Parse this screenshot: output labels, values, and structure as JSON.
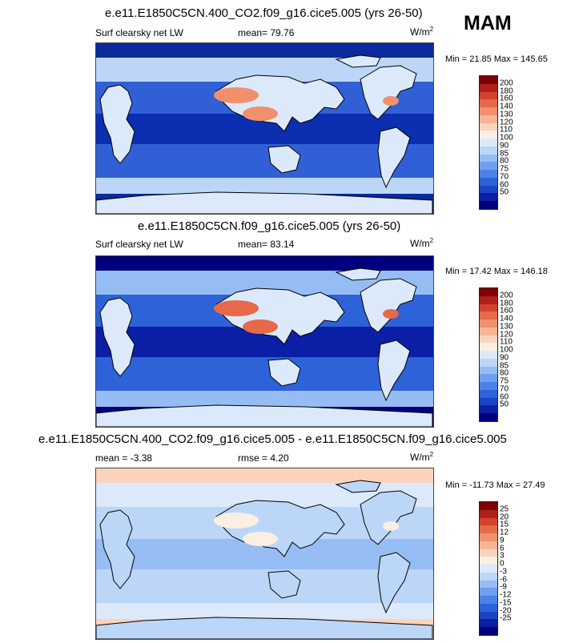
{
  "season": "MAM",
  "colors": {
    "abs": [
      "#00007f",
      "#0b1fa6",
      "#1a44c4",
      "#2e62d8",
      "#4a82e8",
      "#6f9fee",
      "#96bdf3",
      "#bcd6f7",
      "#dce9fb",
      "#fbeee2",
      "#fbd3bd",
      "#f8b595",
      "#f1906c",
      "#e6694a",
      "#d2422c",
      "#b0201a",
      "#7f0000"
    ],
    "diff": [
      "#00007f",
      "#0b1fa6",
      "#1a44c4",
      "#2e62d8",
      "#4a82e8",
      "#6f9fee",
      "#96bdf3",
      "#bcd6f7",
      "#dce9fb",
      "#fbeee2",
      "#fbd3bd",
      "#f8b595",
      "#f1906c",
      "#e6694a",
      "#d2422c",
      "#b0201a",
      "#7f0000"
    ]
  },
  "panels": [
    {
      "title": "e.e11.E1850C5CN.400_CO2.f09_g16.cice5.005 (yrs 26-50)",
      "left_label": "Surf clearsky net LW",
      "mid_label": "mean=  79.76",
      "unit": "W/m",
      "unit_exp": "2",
      "minmax": "Min =  21.85 Max = 145.65",
      "ticks": [
        "200",
        "180",
        "160",
        "140",
        "130",
        "120",
        "110",
        "100",
        "90",
        "85",
        "80",
        "75",
        "70",
        "60",
        "50"
      ],
      "field": {
        "ocean": "#3160d6",
        "tropics": "#0b2fb0",
        "highlat": "#bcd6f7",
        "polar": "#0a2a9e",
        "land": "#dce9fb",
        "desert": "#f1906c"
      }
    },
    {
      "title": "e.e11.E1850C5CN.f09_g16.cice5.005 (yrs 26-50)",
      "left_label": "Surf clearsky net LW",
      "mid_label": "mean=  83.14",
      "unit": "W/m",
      "unit_exp": "2",
      "minmax": "Min =  17.42 Max = 146.18",
      "ticks": [
        "200",
        "180",
        "160",
        "140",
        "130",
        "120",
        "110",
        "100",
        "90",
        "85",
        "80",
        "75",
        "70",
        "60",
        "50"
      ],
      "field": {
        "ocean": "#2e62d8",
        "tropics": "#0b1fa6",
        "highlat": "#96bdf3",
        "polar": "#00007f",
        "land": "#dce9fb",
        "desert": "#e6694a"
      }
    },
    {
      "title": "e.e11.E1850C5CN.400_CO2.f09_g16.cice5.005 - e.e11.E1850C5CN.f09_g16.cice5.005",
      "left_label": "mean =  -3.38",
      "mid_label": "rmse =  4.20",
      "unit": "W/m",
      "unit_exp": "2",
      "minmax": "Min = -11.73 Max =  27.49",
      "ticks": [
        "25",
        "20",
        "15",
        "12",
        "9",
        "6",
        "3",
        "0",
        "-3",
        "-6",
        "-9",
        "-12",
        "-15",
        "-20",
        "-25"
      ],
      "field": {
        "ocean": "#bcd6f7",
        "tropics": "#96bdf3",
        "highlat": "#dce9fb",
        "polar": "#fbd3bd",
        "land": "#bcd6f7",
        "desert": "#fbeee2"
      }
    }
  ]
}
